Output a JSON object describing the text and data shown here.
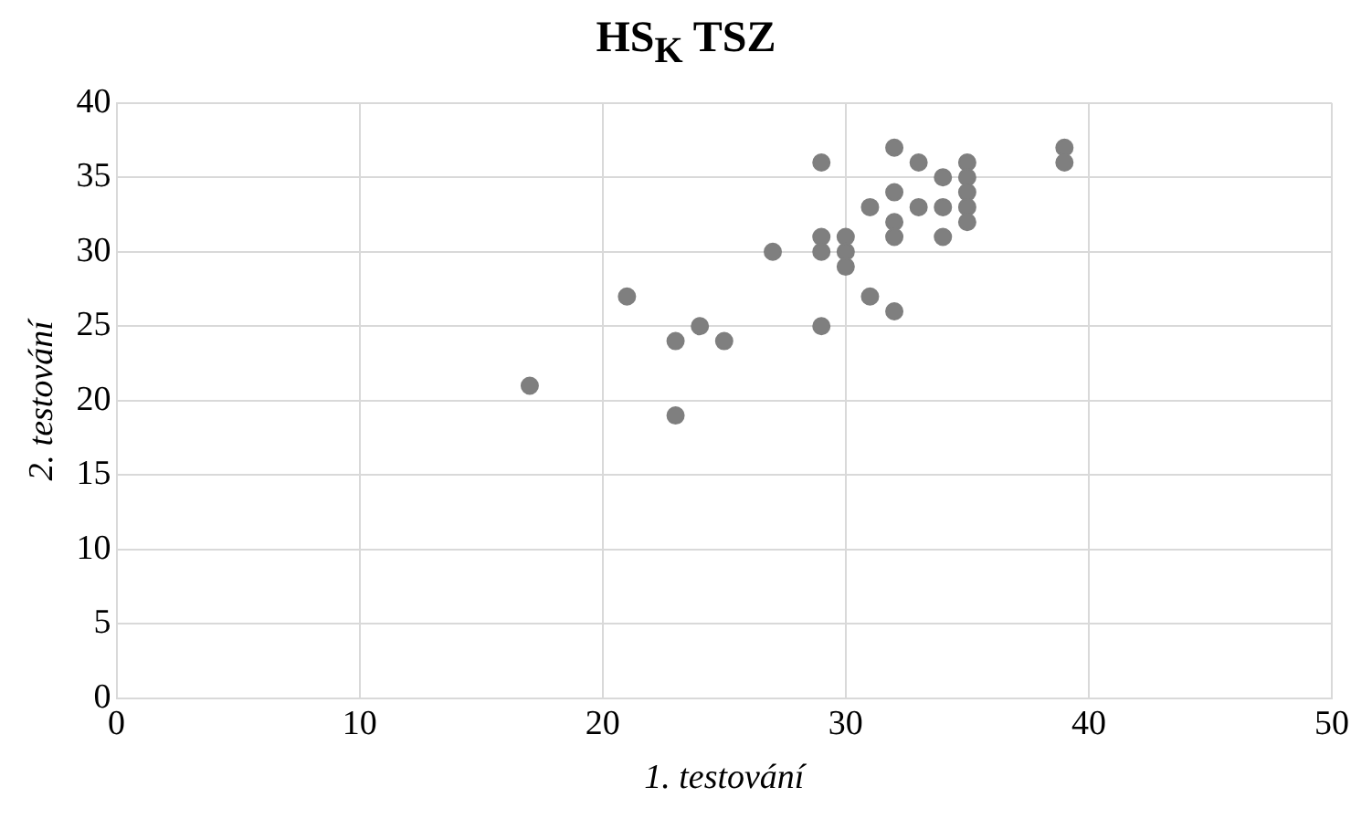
{
  "chart_data": {
    "type": "scatter",
    "title": "HS$_{K}$ TSZ",
    "xlabel": "1. testování",
    "ylabel": "2. testování",
    "xlim": [
      0,
      50
    ],
    "xticks": [
      0,
      10,
      20,
      30,
      40,
      50
    ],
    "ylim": [
      0,
      40
    ],
    "yticks": [
      0,
      5,
      10,
      15,
      20,
      25,
      30,
      35,
      40
    ],
    "grid": true,
    "legend": false,
    "marker": "circle",
    "series": [
      {
        "color": "#7f7f7f",
        "x": [
          17,
          21,
          23,
          23,
          24,
          25,
          27,
          29,
          29,
          29,
          29,
          30,
          30,
          30,
          31,
          31,
          32,
          32,
          32,
          32,
          32,
          33,
          33,
          34,
          34,
          34,
          35,
          35,
          35,
          35,
          35,
          39,
          39
        ],
        "values": [
          21,
          27,
          24,
          19,
          25,
          24,
          30,
          36,
          31,
          30,
          25,
          31,
          30,
          29,
          33,
          27,
          37,
          34,
          32,
          31,
          26,
          36,
          33,
          35,
          33,
          31,
          36,
          35,
          34,
          33,
          32,
          37,
          36
        ]
      }
    ]
  }
}
